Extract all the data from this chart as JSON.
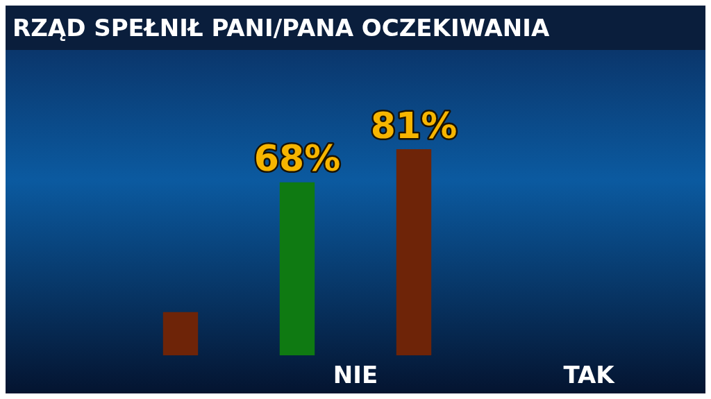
{
  "chart_data": {
    "type": "bar",
    "title": "RZĄD SPEŁNIŁ PANI/PANA OCZEKIWANIA",
    "categories": [
      null,
      "NIE",
      "TAK"
    ],
    "series": [
      {
        "color": "#0f7a12",
        "values": [
          null,
          68,
          null
        ],
        "value_labels": [
          null,
          "68%",
          null
        ]
      },
      {
        "color": "#6e2408",
        "values": [
          17,
          81,
          null
        ],
        "value_labels": [
          null,
          "81%",
          null
        ]
      }
    ],
    "grid": false,
    "legend": false
  }
}
